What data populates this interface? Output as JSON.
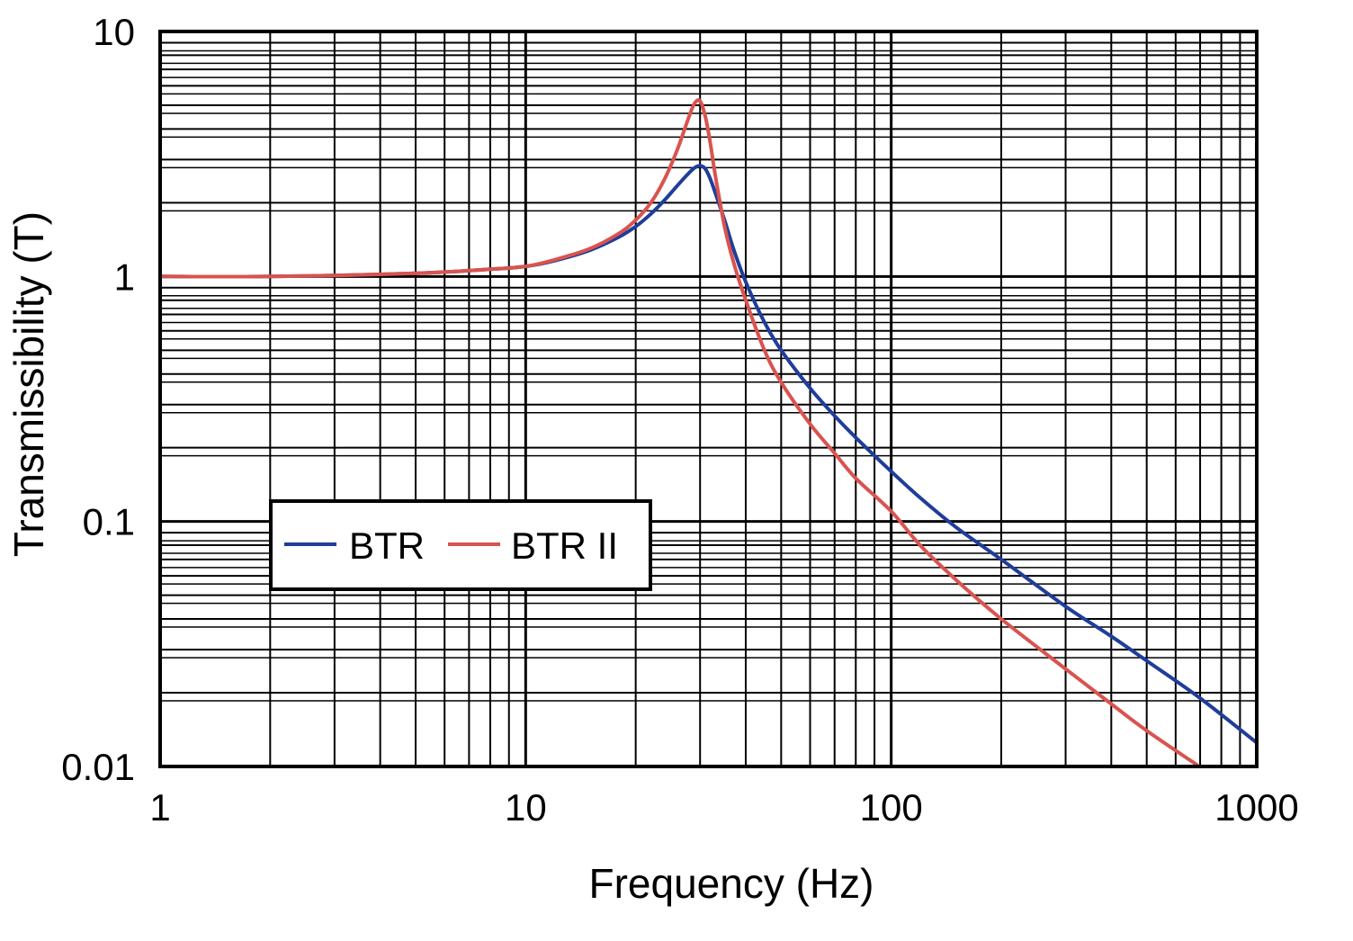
{
  "chart_data": {
    "type": "line",
    "title": "",
    "xlabel": "Frequency (Hz)",
    "ylabel": "Transmissibility (T)",
    "xscale": "log",
    "yscale": "log",
    "xlim": [
      1,
      1000
    ],
    "ylim": [
      0.01,
      10
    ],
    "grid": true,
    "legend_position": "lower-left",
    "x_ticks": [
      {
        "value": 1,
        "label": "1"
      },
      {
        "value": 10,
        "label": "10"
      },
      {
        "value": 100,
        "label": "100"
      },
      {
        "value": 1000,
        "label": "1000"
      }
    ],
    "y_ticks": [
      {
        "value": 0.01,
        "label": "0.01"
      },
      {
        "value": 0.1,
        "label": "0.1"
      },
      {
        "value": 1,
        "label": "1"
      },
      {
        "value": 10,
        "label": "10"
      }
    ],
    "series": [
      {
        "name": "BTR",
        "color": "#1f3d99",
        "x": [
          1,
          2,
          5,
          8,
          10,
          12,
          15,
          18,
          20,
          22,
          24,
          26,
          28,
          29,
          30,
          31,
          32,
          33,
          35,
          37,
          40,
          45,
          50,
          60,
          70,
          80,
          100,
          120,
          150,
          200,
          300,
          400,
          500,
          700,
          1000
        ],
        "y": [
          1.0,
          1.0,
          1.03,
          1.07,
          1.1,
          1.16,
          1.28,
          1.45,
          1.6,
          1.8,
          2.05,
          2.35,
          2.65,
          2.78,
          2.83,
          2.75,
          2.5,
          2.2,
          1.7,
          1.3,
          0.95,
          0.65,
          0.5,
          0.35,
          0.27,
          0.22,
          0.16,
          0.125,
          0.095,
          0.07,
          0.045,
          0.034,
          0.027,
          0.019,
          0.0125
        ]
      },
      {
        "name": "BTR II",
        "color": "#d9534f",
        "x": [
          1,
          2,
          5,
          8,
          10,
          12,
          15,
          18,
          20,
          22,
          24,
          26,
          28,
          29,
          30,
          31,
          32,
          33,
          35,
          37,
          40,
          45,
          50,
          60,
          70,
          80,
          100,
          120,
          150,
          200,
          300,
          400,
          500,
          690
        ],
        "y": [
          1.0,
          1.0,
          1.03,
          1.07,
          1.1,
          1.17,
          1.3,
          1.5,
          1.7,
          2.0,
          2.5,
          3.3,
          4.5,
          5.1,
          5.2,
          4.5,
          3.5,
          2.6,
          1.6,
          1.15,
          0.8,
          0.5,
          0.37,
          0.25,
          0.19,
          0.15,
          0.11,
          0.08,
          0.058,
          0.04,
          0.025,
          0.018,
          0.014,
          0.0101
        ]
      }
    ]
  }
}
